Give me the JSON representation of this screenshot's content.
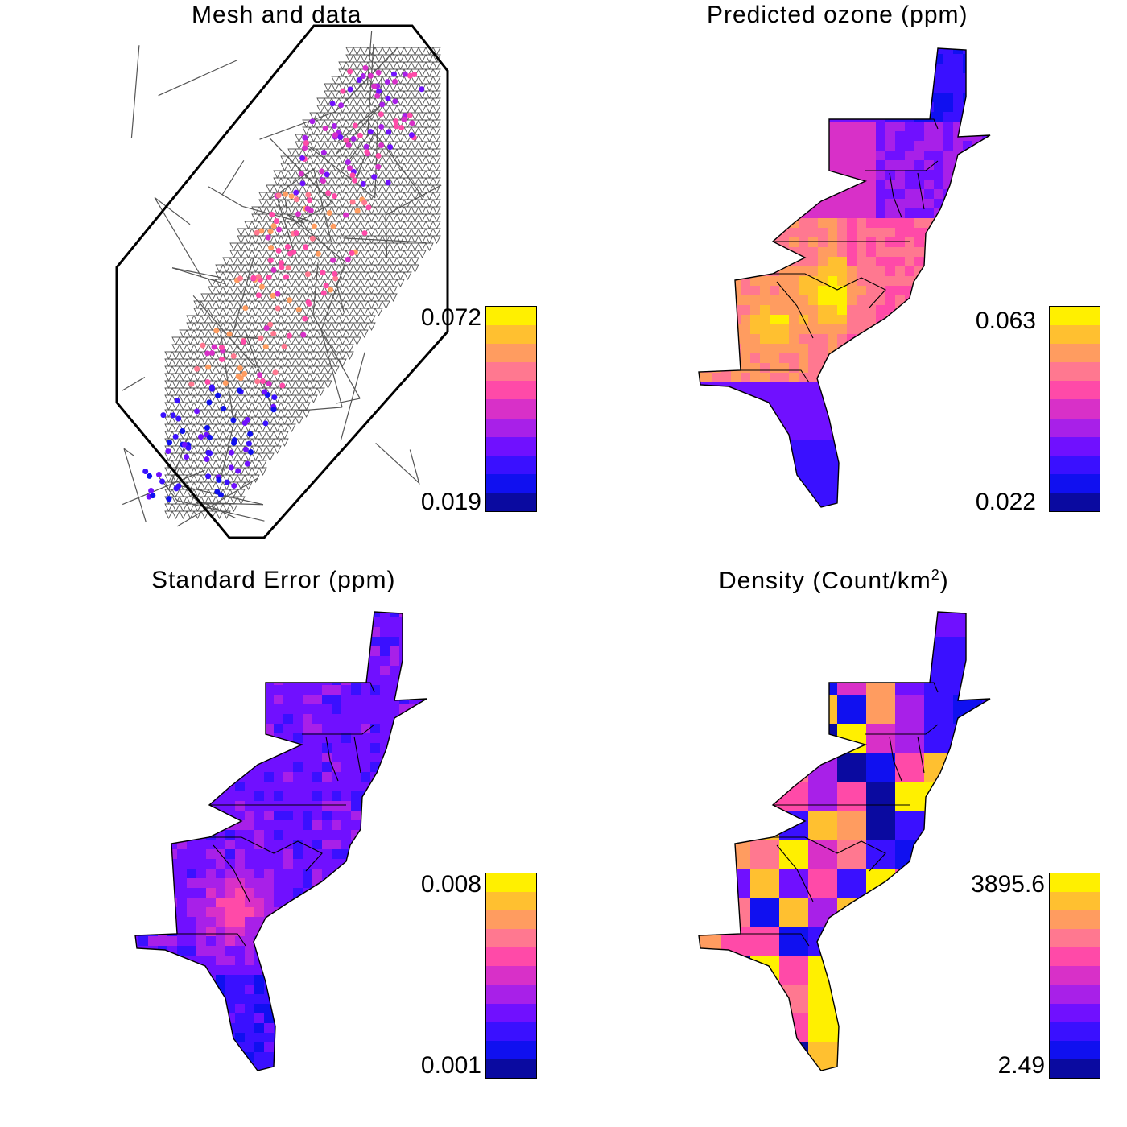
{
  "panels": [
    {
      "id": "mesh",
      "title": "Mesh and data",
      "legend_max": "0.072",
      "legend_min": "0.019"
    },
    {
      "id": "ozone",
      "title": "Predicted ozone (ppm)",
      "legend_max": "0.063",
      "legend_min": "0.022"
    },
    {
      "id": "se",
      "title": "Standard Error (ppm)",
      "legend_max": "0.008",
      "legend_min": "0.001"
    },
    {
      "id": "density",
      "title_main": "Density (Count/km",
      "title_sup": "2",
      "title_end": ")",
      "legend_max": "3895.6",
      "legend_min": "2.49"
    }
  ],
  "palette": [
    "#0a0aa0",
    "#1010f0",
    "#3a10ff",
    "#7010ff",
    "#a820e8",
    "#d830c8",
    "#ff4aa8",
    "#ff7890",
    "#ff9c60",
    "#ffc030",
    "#fff000"
  ]
}
